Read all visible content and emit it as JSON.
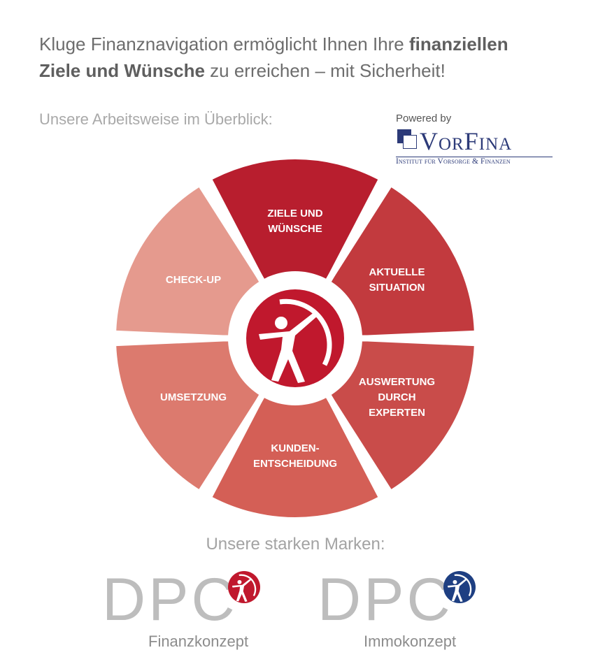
{
  "headline": {
    "part1": "Kluge Finanznavigation ermöglicht Ihnen Ihre ",
    "bold1": "finanziellen",
    "bold2": "Ziele und Wünsche",
    "part2": " zu erreichen – mit Sicherheit!"
  },
  "subtitle": "Unsere Arbeitsweise im Überblick:",
  "powered": {
    "label": "Powered by",
    "brand": "VorFina",
    "institute": "Institut für Vorsorge & Finanzen"
  },
  "wheel": {
    "segments": [
      {
        "lines": [
          "ZIELE UND",
          "WÜNSCHE"
        ],
        "color": "#b81e2e"
      },
      {
        "lines": [
          "AKTUELLE",
          "SITUATION"
        ],
        "color": "#c23a3e"
      },
      {
        "lines": [
          "AUSWERTUNG",
          "DURCH",
          "EXPERTEN"
        ],
        "color": "#c94c4a"
      },
      {
        "lines": [
          "KUNDEN-",
          "ENTSCHEIDUNG"
        ],
        "color": "#d45f56"
      },
      {
        "lines": [
          "UMSETZUNG"
        ],
        "color": "#dc7a6e"
      },
      {
        "lines": [
          "CHECK-UP"
        ],
        "color": "#e59a8e"
      }
    ],
    "center_icon": "archer-logo-icon",
    "center_color": "#c0182d"
  },
  "brands": {
    "title": "Unsere starken Marken:",
    "items": [
      {
        "name": "DPC",
        "subtitle": "Finanzkonzept",
        "color": "#c0182d",
        "icon": "archer-logo-icon"
      },
      {
        "name": "DPC",
        "subtitle": "Immokonzept",
        "color": "#1e3f82",
        "icon": "archer-logo-icon"
      }
    ]
  }
}
